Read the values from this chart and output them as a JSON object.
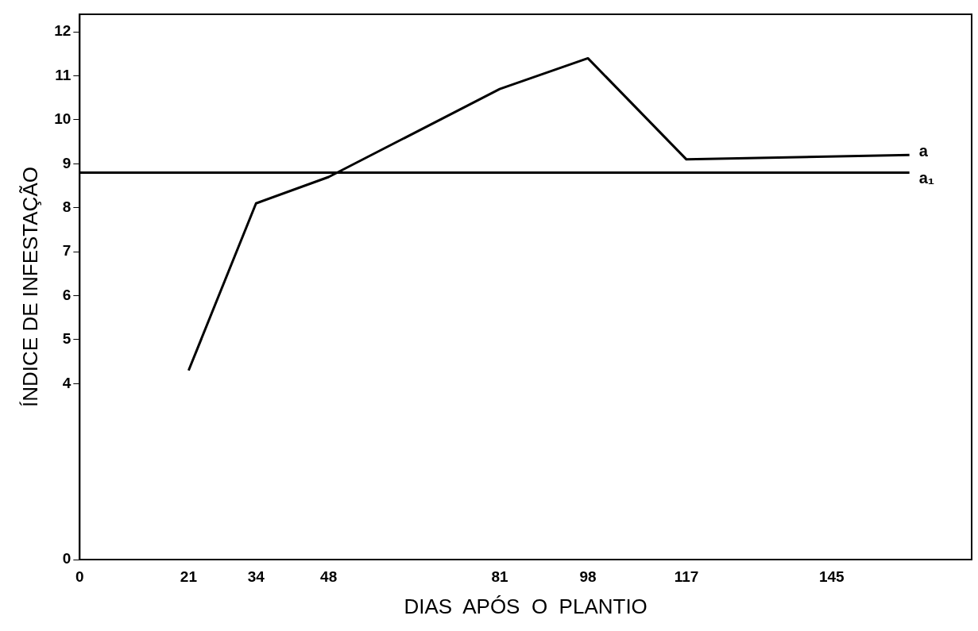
{
  "chart_data": {
    "type": "line",
    "xlabel": "DIAS  APÓS  O  PLANTIO",
    "ylabel": "ÍNDICE DE INFESTAÇÃO",
    "series": [
      {
        "name": "a",
        "color": "#000000",
        "x": [
          21,
          34,
          48,
          81,
          98,
          117,
          160
        ],
        "values": [
          4.3,
          8.1,
          8.7,
          10.7,
          11.4,
          9.1,
          9.2
        ]
      }
    ],
    "ref_lines": [
      {
        "axis": "y",
        "value": 8.8,
        "label": "a₁",
        "color": "#000000"
      }
    ],
    "xlim": [
      0,
      172
    ],
    "xticks": [
      0,
      21,
      34,
      48,
      81,
      98,
      117,
      145
    ],
    "ylim": [
      0,
      12.4
    ],
    "yticks": [
      0,
      4,
      5,
      6,
      7,
      8,
      9,
      10,
      11,
      12
    ],
    "grid": false,
    "legend": false,
    "marker": "none",
    "line_style": "solid"
  }
}
